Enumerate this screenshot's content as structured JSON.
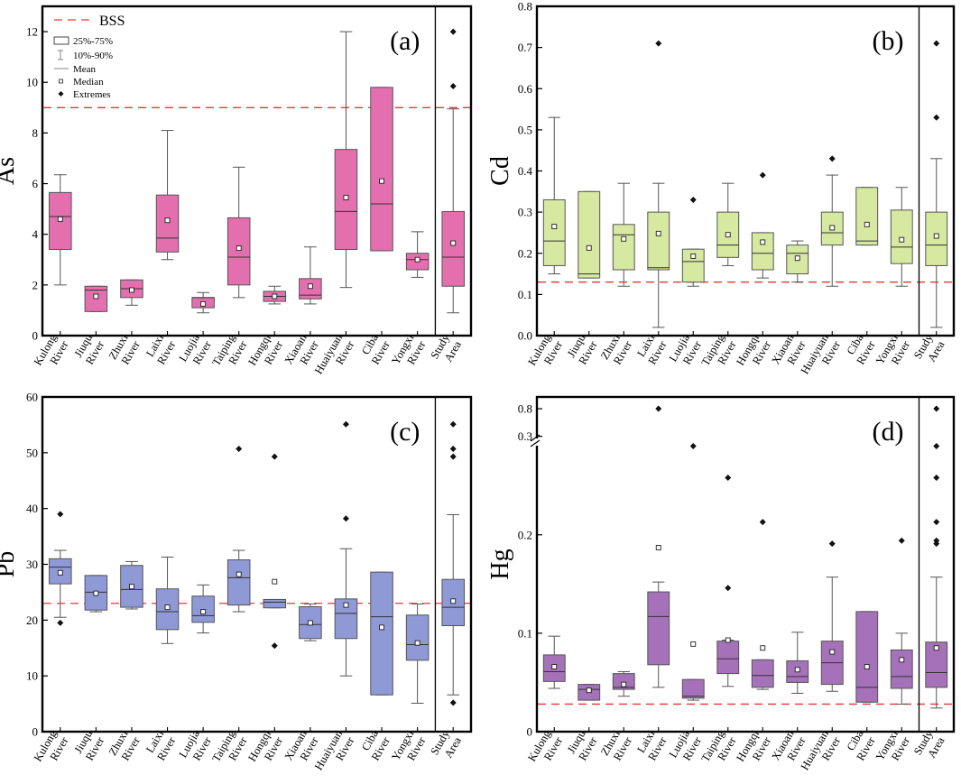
{
  "legend": {
    "bss": "BSS",
    "box": "25%-75%",
    "whisker": "10%-90%",
    "mean": "Mean",
    "median": "Median",
    "extremes": "Extremes"
  },
  "chart_data": [
    {
      "type": "box",
      "id": "a",
      "tag": "(a)",
      "ylabel": "As",
      "ylim": [
        0,
        13
      ],
      "yticks": [
        0,
        2,
        4,
        6,
        8,
        10,
        12
      ],
      "bss": 9.0,
      "color": "#e46fae",
      "showLegend": true,
      "categories": [
        [
          "Kulong",
          "River"
        ],
        [
          "Jiuqu",
          "River"
        ],
        [
          "Zhuxi",
          "River"
        ],
        [
          "Laixi",
          "River"
        ],
        [
          "Luojia",
          "River"
        ],
        [
          "Taiping",
          "River"
        ],
        [
          "Hongqi",
          "River"
        ],
        [
          "Xiaoan",
          "River"
        ],
        [
          "Huaiyuan",
          "River"
        ],
        [
          "Ciba",
          "River"
        ],
        [
          "Yongxi",
          "River"
        ],
        [
          "Study",
          "Area"
        ]
      ],
      "boxes": [
        {
          "wlo": 2.0,
          "q1": 3.4,
          "med": 4.7,
          "q3": 5.65,
          "whi": 6.35,
          "mean": 4.6,
          "ext": []
        },
        {
          "wlo": 0.95,
          "q1": 0.95,
          "med": 1.8,
          "q3": 1.95,
          "whi": 1.95,
          "mean": 1.55,
          "ext": []
        },
        {
          "wlo": 1.2,
          "q1": 1.5,
          "med": 1.85,
          "q3": 2.2,
          "whi": 2.2,
          "mean": 1.8,
          "ext": []
        },
        {
          "wlo": 3.0,
          "q1": 3.3,
          "med": 3.85,
          "q3": 5.55,
          "whi": 8.1,
          "mean": 4.55,
          "ext": []
        },
        {
          "wlo": 0.9,
          "q1": 1.1,
          "med": 1.5,
          "q3": 1.5,
          "whi": 1.7,
          "mean": 1.25,
          "ext": []
        },
        {
          "wlo": 1.5,
          "q1": 2.0,
          "med": 3.1,
          "q3": 4.65,
          "whi": 6.65,
          "mean": 3.45,
          "ext": []
        },
        {
          "wlo": 1.25,
          "q1": 1.35,
          "med": 1.55,
          "q3": 1.75,
          "whi": 1.95,
          "mean": 1.55,
          "ext": []
        },
        {
          "wlo": 1.25,
          "q1": 1.45,
          "med": 1.6,
          "q3": 2.25,
          "whi": 3.5,
          "mean": 1.95,
          "ext": []
        },
        {
          "wlo": 1.9,
          "q1": 3.4,
          "med": 4.9,
          "q3": 7.35,
          "whi": 12.0,
          "mean": 5.45,
          "ext": []
        },
        {
          "wlo": 3.35,
          "q1": 3.35,
          "med": 5.2,
          "q3": 9.8,
          "whi": 9.8,
          "mean": 6.1,
          "ext": []
        },
        {
          "wlo": 2.3,
          "q1": 2.6,
          "med": 3.0,
          "q3": 3.25,
          "whi": 4.1,
          "mean": 3.0,
          "ext": []
        },
        {
          "wlo": 0.9,
          "q1": 1.95,
          "med": 3.1,
          "q3": 4.9,
          "whi": 8.95,
          "mean": 3.65,
          "ext": [
            9.85,
            12.0
          ]
        }
      ]
    },
    {
      "type": "box",
      "id": "b",
      "tag": "(b)",
      "ylabel": "Cd",
      "ylim": [
        0,
        0.8
      ],
      "yticks": [
        0,
        0.1,
        0.2,
        0.3,
        0.4,
        0.5,
        0.6,
        0.7,
        0.8
      ],
      "yticklabels": [
        "0.0",
        "0.1",
        "0.2",
        "0.3",
        "0.4",
        "0.5",
        "0.6",
        "0.7",
        "0.8"
      ],
      "bss": 0.13,
      "color": "#d7e8a0",
      "showLegend": false,
      "categories": [
        [
          "Kulong",
          "River"
        ],
        [
          "Jiuqu",
          "River"
        ],
        [
          "Zhuxi",
          "River"
        ],
        [
          "Laixi",
          "River"
        ],
        [
          "Luojia",
          "River"
        ],
        [
          "Taiping",
          "River"
        ],
        [
          "Hongqi",
          "River"
        ],
        [
          "Xiaoan",
          "River"
        ],
        [
          "Huaiyuan",
          "River"
        ],
        [
          "Ciba",
          "River"
        ],
        [
          "Yongxi",
          "River"
        ],
        [
          "Study",
          "Area"
        ]
      ],
      "boxes": [
        {
          "wlo": 0.15,
          "q1": 0.17,
          "med": 0.23,
          "q3": 0.33,
          "whi": 0.53,
          "mean": 0.265,
          "ext": []
        },
        {
          "wlo": 0.14,
          "q1": 0.14,
          "med": 0.15,
          "q3": 0.35,
          "whi": 0.35,
          "mean": 0.213,
          "ext": []
        },
        {
          "wlo": 0.12,
          "q1": 0.16,
          "med": 0.245,
          "q3": 0.27,
          "whi": 0.37,
          "mean": 0.235,
          "ext": []
        },
        {
          "wlo": 0.02,
          "q1": 0.16,
          "med": 0.165,
          "q3": 0.3,
          "whi": 0.37,
          "mean": 0.248,
          "ext": [
            0.71
          ]
        },
        {
          "wlo": 0.12,
          "q1": 0.13,
          "med": 0.18,
          "q3": 0.21,
          "whi": 0.21,
          "mean": 0.193,
          "ext": [
            0.33
          ]
        },
        {
          "wlo": 0.17,
          "q1": 0.19,
          "med": 0.22,
          "q3": 0.3,
          "whi": 0.37,
          "mean": 0.245,
          "ext": []
        },
        {
          "wlo": 0.14,
          "q1": 0.16,
          "med": 0.2,
          "q3": 0.25,
          "whi": 0.25,
          "mean": 0.227,
          "ext": [
            0.39
          ]
        },
        {
          "wlo": 0.13,
          "q1": 0.15,
          "med": 0.2,
          "q3": 0.22,
          "whi": 0.23,
          "mean": 0.188,
          "ext": []
        },
        {
          "wlo": 0.12,
          "q1": 0.22,
          "med": 0.25,
          "q3": 0.3,
          "whi": 0.39,
          "mean": 0.262,
          "ext": [
            0.43
          ]
        },
        {
          "wlo": 0.22,
          "q1": 0.22,
          "med": 0.23,
          "q3": 0.36,
          "whi": 0.36,
          "mean": 0.27,
          "ext": []
        },
        {
          "wlo": 0.12,
          "q1": 0.175,
          "med": 0.215,
          "q3": 0.305,
          "whi": 0.36,
          "mean": 0.233,
          "ext": []
        },
        {
          "wlo": 0.02,
          "q1": 0.17,
          "med": 0.22,
          "q3": 0.3,
          "whi": 0.43,
          "mean": 0.242,
          "ext": [
            0.53,
            0.71
          ]
        }
      ]
    },
    {
      "type": "box",
      "id": "c",
      "tag": "(c)",
      "ylabel": "Pb",
      "ylim": [
        0,
        60
      ],
      "yticks": [
        0,
        10,
        20,
        30,
        40,
        50,
        60
      ],
      "bss": 23.0,
      "color": "#8f99d6",
      "showLegend": false,
      "categories": [
        [
          "Kulong",
          "River"
        ],
        [
          "Jiuqu",
          "River"
        ],
        [
          "Zhuxi",
          "River"
        ],
        [
          "Laixi",
          "River"
        ],
        [
          "Luojia",
          "River"
        ],
        [
          "Taiping",
          "River"
        ],
        [
          "Hongqi",
          "River"
        ],
        [
          "Xiaoan",
          "River"
        ],
        [
          "Huaiyuan",
          "River"
        ],
        [
          "Ciba",
          "River"
        ],
        [
          "Yongxi",
          "River"
        ],
        [
          "Study",
          "Area"
        ]
      ],
      "boxes": [
        {
          "wlo": 20.5,
          "q1": 26.5,
          "med": 29.5,
          "q3": 31.0,
          "whi": 32.5,
          "mean": 28.5,
          "ext": [
            19.5,
            39.0
          ]
        },
        {
          "wlo": 21.5,
          "q1": 21.8,
          "med": 25.0,
          "q3": 28.0,
          "whi": 28.0,
          "mean": 24.8,
          "ext": []
        },
        {
          "wlo": 22.0,
          "q1": 22.3,
          "med": 25.5,
          "q3": 29.8,
          "whi": 30.5,
          "mean": 26.0,
          "ext": []
        },
        {
          "wlo": 15.8,
          "q1": 18.3,
          "med": 21.5,
          "q3": 25.6,
          "whi": 31.3,
          "mean": 22.3,
          "ext": []
        },
        {
          "wlo": 17.7,
          "q1": 19.6,
          "med": 20.8,
          "q3": 24.3,
          "whi": 26.3,
          "mean": 21.5,
          "ext": []
        },
        {
          "wlo": 21.5,
          "q1": 22.7,
          "med": 27.6,
          "q3": 30.8,
          "whi": 32.5,
          "mean": 28.2,
          "ext": [
            50.7
          ]
        },
        {
          "wlo": 22.2,
          "q1": 22.2,
          "med": 23.2,
          "q3": 23.7,
          "whi": 23.7,
          "mean": 26.9,
          "ext": [
            15.4,
            49.3
          ]
        },
        {
          "wlo": 16.3,
          "q1": 16.7,
          "med": 19.2,
          "q3": 22.4,
          "whi": 22.9,
          "mean": 19.5,
          "ext": []
        },
        {
          "wlo": 10.0,
          "q1": 16.7,
          "med": 21.2,
          "q3": 23.8,
          "whi": 32.8,
          "mean": 22.7,
          "ext": [
            38.2,
            55.1
          ]
        },
        {
          "wlo": 6.6,
          "q1": 6.6,
          "med": 20.6,
          "q3": 28.6,
          "whi": 28.6,
          "mean": 18.7,
          "ext": []
        },
        {
          "wlo": 5.1,
          "q1": 12.8,
          "med": 15.6,
          "q3": 20.9,
          "whi": 22.9,
          "mean": 15.9,
          "ext": []
        },
        {
          "wlo": 6.6,
          "q1": 19.0,
          "med": 22.3,
          "q3": 27.3,
          "whi": 38.9,
          "mean": 23.4,
          "ext": [
            5.2,
            49.3,
            50.7,
            55.1
          ]
        }
      ]
    },
    {
      "type": "box",
      "id": "d",
      "tag": "(d)",
      "ylabel": "Hg",
      "ylim": [
        0,
        0.34
      ],
      "broken_axis": {
        "break_at": 0.3,
        "above_tick": 0.8,
        "above_label": "0.8"
      },
      "yticks": [
        0,
        0.1,
        0.2,
        0.3
      ],
      "yticklabels": [
        "0",
        "0.1",
        "0.2",
        "0.3"
      ],
      "bss": 0.028,
      "color": "#a571b8",
      "showLegend": false,
      "categories": [
        [
          "Kulong",
          "River"
        ],
        [
          "Jiuqu",
          "River"
        ],
        [
          "Zhuxi",
          "River"
        ],
        [
          "Laixi",
          "River"
        ],
        [
          "Luojia",
          "River"
        ],
        [
          "Taiping",
          "River"
        ],
        [
          "Hongqi",
          "River"
        ],
        [
          "Xiaoan",
          "River"
        ],
        [
          "Huaiyuan",
          "River"
        ],
        [
          "Ciba",
          "River"
        ],
        [
          "Yongxi",
          "River"
        ],
        [
          "Study",
          "Area"
        ]
      ],
      "boxes": [
        {
          "wlo": 0.044,
          "q1": 0.051,
          "med": 0.061,
          "q3": 0.078,
          "whi": 0.097,
          "mean": 0.066,
          "ext": []
        },
        {
          "wlo": 0.032,
          "q1": 0.032,
          "med": 0.043,
          "q3": 0.048,
          "whi": 0.048,
          "mean": 0.042,
          "ext": []
        },
        {
          "wlo": 0.036,
          "q1": 0.043,
          "med": 0.045,
          "q3": 0.059,
          "whi": 0.061,
          "mean": 0.048,
          "ext": []
        },
        {
          "wlo": 0.045,
          "q1": 0.068,
          "med": 0.117,
          "q3": 0.142,
          "whi": 0.152,
          "mean": 0.187,
          "ext": [
            0.8
          ]
        },
        {
          "wlo": 0.032,
          "q1": 0.034,
          "med": 0.036,
          "q3": 0.053,
          "whi": 0.053,
          "mean": 0.089,
          "ext": [
            0.29
          ]
        },
        {
          "wlo": 0.046,
          "q1": 0.059,
          "med": 0.074,
          "q3": 0.092,
          "whi": 0.093,
          "mean": 0.093,
          "ext": [
            0.146,
            0.258
          ]
        },
        {
          "wlo": 0.043,
          "q1": 0.045,
          "med": 0.057,
          "q3": 0.073,
          "whi": 0.073,
          "mean": 0.085,
          "ext": [
            0.213
          ]
        },
        {
          "wlo": 0.039,
          "q1": 0.05,
          "med": 0.056,
          "q3": 0.072,
          "whi": 0.101,
          "mean": 0.063,
          "ext": []
        },
        {
          "wlo": 0.041,
          "q1": 0.048,
          "med": 0.07,
          "q3": 0.092,
          "whi": 0.157,
          "mean": 0.081,
          "ext": [
            0.191
          ]
        },
        {
          "wlo": 0.03,
          "q1": 0.03,
          "med": 0.045,
          "q3": 0.122,
          "whi": 0.122,
          "mean": 0.066,
          "ext": []
        },
        {
          "wlo": 0.028,
          "q1": 0.044,
          "med": 0.056,
          "q3": 0.083,
          "whi": 0.1,
          "mean": 0.073,
          "ext": [
            0.194
          ]
        },
        {
          "wlo": 0.024,
          "q1": 0.045,
          "med": 0.06,
          "q3": 0.091,
          "whi": 0.157,
          "mean": 0.085,
          "ext": [
            0.191,
            0.194,
            0.213,
            0.258,
            0.29,
            0.8
          ]
        }
      ]
    }
  ]
}
